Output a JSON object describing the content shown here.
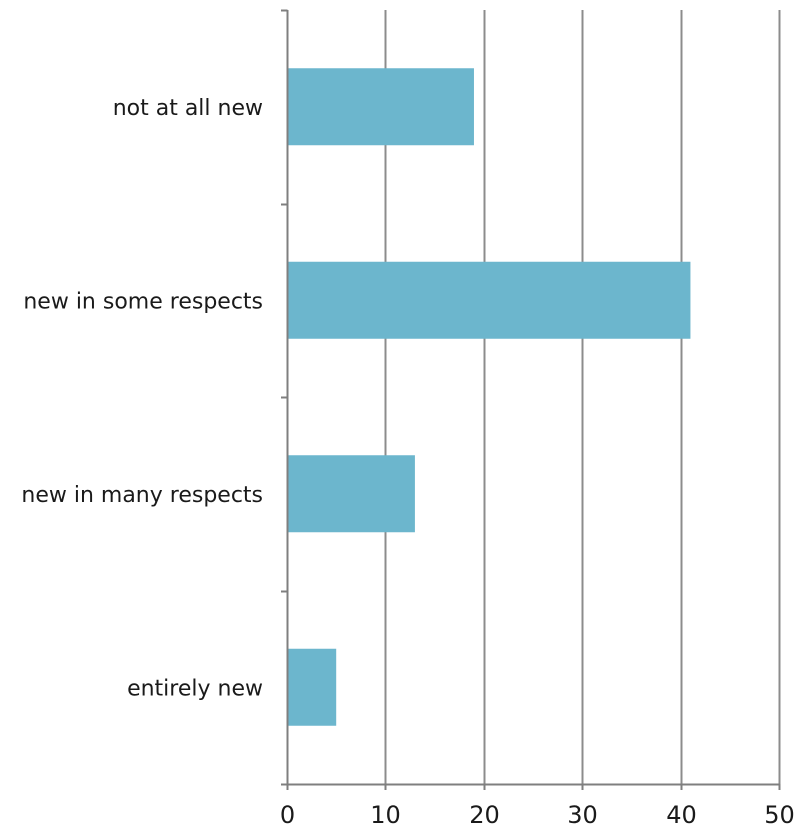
{
  "chart_data": {
    "type": "bar",
    "orientation": "horizontal",
    "categories": [
      "not at all new",
      "new in some respects",
      "new in many respects",
      "entirely new"
    ],
    "values": [
      19,
      41,
      13,
      5
    ],
    "xlim": [
      0,
      50
    ],
    "xticks": [
      0,
      10,
      20,
      30,
      40,
      50
    ],
    "title": "",
    "xlabel": "",
    "ylabel": "",
    "grid": "vertical",
    "legend": "none",
    "colors": {
      "bar": "#6cb6cd",
      "grid": "#8c8c8c",
      "axis": "#7f7f7f",
      "text": "#1a1a1a"
    }
  }
}
